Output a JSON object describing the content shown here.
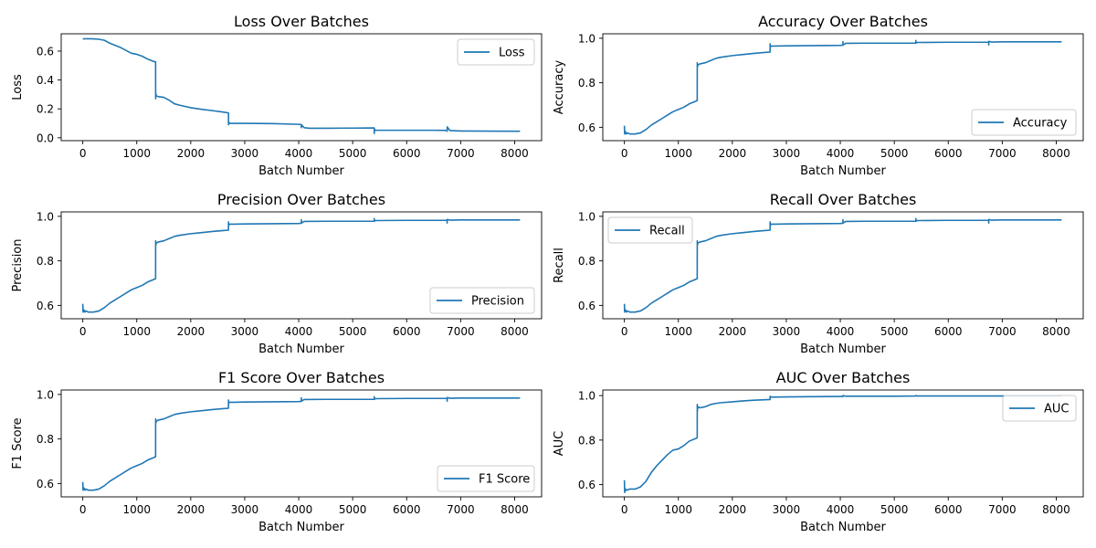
{
  "figure": {
    "background": "#ffffff",
    "line_color": "#1f77b4"
  },
  "chart_data": [
    {
      "type": "line",
      "title": "Loss Over Batches",
      "xlabel": "Batch Number",
      "ylabel": "Loss",
      "xlim": [
        -400,
        8500
      ],
      "ylim": [
        -0.02,
        0.72
      ],
      "xticks": [
        0,
        1000,
        2000,
        3000,
        4000,
        5000,
        6000,
        7000,
        8000
      ],
      "xtick_labels": [
        "0",
        "1000",
        "2000",
        "3000",
        "4000",
        "5000",
        "6000",
        "7000",
        "8000"
      ],
      "yticks": [
        0.0,
        0.2,
        0.4,
        0.6
      ],
      "ytick_labels": [
        "0.0",
        "0.2",
        "0.4",
        "0.6"
      ],
      "legend": {
        "position": "top-right",
        "entries": [
          "Loss"
        ]
      },
      "grid": false,
      "series": [
        {
          "name": "Loss",
          "x": [
            0,
            100,
            200,
            300,
            400,
            500,
            600,
            700,
            800,
            900,
            1000,
            1100,
            1200,
            1300,
            1349,
            1350,
            1352,
            1360,
            1400,
            1500,
            1600,
            1700,
            1800,
            2000,
            2200,
            2400,
            2600,
            2699,
            2700,
            2702,
            2720,
            2800,
            3000,
            3500,
            4000,
            4049,
            4050,
            4052,
            4100,
            4200,
            4500,
            5000,
            5399,
            5400,
            5402,
            5420,
            5500,
            6000,
            6500,
            6749,
            6750,
            6752,
            6800,
            7000,
            7500,
            8000,
            8100
          ],
          "y": [
            0.685,
            0.686,
            0.685,
            0.682,
            0.675,
            0.655,
            0.64,
            0.625,
            0.605,
            0.585,
            0.578,
            0.565,
            0.545,
            0.53,
            0.525,
            0.27,
            0.31,
            0.29,
            0.285,
            0.28,
            0.26,
            0.235,
            0.225,
            0.208,
            0.197,
            0.188,
            0.178,
            0.172,
            0.09,
            0.11,
            0.1,
            0.1,
            0.1,
            0.098,
            0.093,
            0.091,
            0.07,
            0.09,
            0.07,
            0.066,
            0.066,
            0.067,
            0.068,
            0.03,
            0.06,
            0.052,
            0.052,
            0.052,
            0.052,
            0.051,
            0.045,
            0.075,
            0.05,
            0.047,
            0.046,
            0.045,
            0.045
          ]
        }
      ]
    },
    {
      "type": "line",
      "title": "Accuracy Over Batches",
      "xlabel": "Batch Number",
      "ylabel": "Accuracy",
      "xlim": [
        -400,
        8500
      ],
      "ylim": [
        0.54,
        1.02
      ],
      "xticks": [
        0,
        1000,
        2000,
        3000,
        4000,
        5000,
        6000,
        7000,
        8000
      ],
      "xtick_labels": [
        "0",
        "1000",
        "2000",
        "3000",
        "4000",
        "5000",
        "6000",
        "7000",
        "8000"
      ],
      "yticks": [
        0.6,
        0.8,
        1.0
      ],
      "ytick_labels": [
        "0.6",
        "0.8",
        "1.0"
      ],
      "legend": {
        "position": "bottom-right",
        "entries": [
          "Accuracy"
        ]
      },
      "grid": false,
      "series": [
        {
          "name": "Accuracy",
          "x": [
            0,
            5,
            20,
            40,
            60,
            100,
            200,
            300,
            400,
            500,
            600,
            700,
            800,
            900,
            1000,
            1100,
            1200,
            1300,
            1349,
            1350,
            1352,
            1360,
            1400,
            1500,
            1600,
            1700,
            1800,
            2000,
            2200,
            2400,
            2600,
            2699,
            2700,
            2702,
            2720,
            2800,
            3000,
            3500,
            4000,
            4049,
            4050,
            4052,
            4100,
            4500,
            5000,
            5399,
            5400,
            5402,
            5420,
            6000,
            6500,
            6749,
            6750,
            6752,
            6800,
            7000,
            7500,
            8000,
            8100
          ],
          "y": [
            0.607,
            0.57,
            0.58,
            0.57,
            0.575,
            0.57,
            0.57,
            0.575,
            0.59,
            0.61,
            0.625,
            0.64,
            0.655,
            0.67,
            0.68,
            0.69,
            0.705,
            0.715,
            0.72,
            0.89,
            0.87,
            0.88,
            0.885,
            0.89,
            0.9,
            0.91,
            0.915,
            0.922,
            0.927,
            0.932,
            0.936,
            0.938,
            0.975,
            0.96,
            0.965,
            0.965,
            0.966,
            0.967,
            0.968,
            0.969,
            0.985,
            0.97,
            0.977,
            0.978,
            0.978,
            0.978,
            0.99,
            0.978,
            0.981,
            0.982,
            0.982,
            0.982,
            0.97,
            0.986,
            0.983,
            0.984,
            0.984,
            0.984,
            0.984
          ]
        }
      ]
    },
    {
      "type": "line",
      "title": "Precision Over Batches",
      "xlabel": "Batch Number",
      "ylabel": "Precision",
      "xlim": [
        -400,
        8500
      ],
      "ylim": [
        0.54,
        1.02
      ],
      "xticks": [
        0,
        1000,
        2000,
        3000,
        4000,
        5000,
        6000,
        7000,
        8000
      ],
      "xtick_labels": [
        "0",
        "1000",
        "2000",
        "3000",
        "4000",
        "5000",
        "6000",
        "7000",
        "8000"
      ],
      "yticks": [
        0.6,
        0.8,
        1.0
      ],
      "ytick_labels": [
        "0.6",
        "0.8",
        "1.0"
      ],
      "legend": {
        "position": "bottom-right",
        "entries": [
          "Precision"
        ]
      },
      "grid": false,
      "series": [
        {
          "name": "Precision",
          "x": [
            0,
            5,
            20,
            40,
            60,
            100,
            200,
            300,
            400,
            500,
            600,
            700,
            800,
            900,
            1000,
            1100,
            1200,
            1300,
            1349,
            1350,
            1352,
            1360,
            1400,
            1500,
            1600,
            1700,
            1800,
            2000,
            2200,
            2400,
            2600,
            2699,
            2700,
            2702,
            2720,
            2800,
            3000,
            3500,
            4000,
            4049,
            4050,
            4052,
            4100,
            4500,
            5000,
            5399,
            5400,
            5402,
            5420,
            6000,
            6500,
            6749,
            6750,
            6752,
            6800,
            7000,
            7500,
            8000,
            8100
          ],
          "y": [
            0.607,
            0.57,
            0.58,
            0.57,
            0.575,
            0.57,
            0.57,
            0.575,
            0.59,
            0.61,
            0.625,
            0.64,
            0.655,
            0.67,
            0.68,
            0.69,
            0.705,
            0.715,
            0.72,
            0.89,
            0.87,
            0.88,
            0.885,
            0.89,
            0.9,
            0.91,
            0.915,
            0.922,
            0.927,
            0.932,
            0.936,
            0.938,
            0.975,
            0.96,
            0.965,
            0.965,
            0.966,
            0.967,
            0.968,
            0.969,
            0.985,
            0.97,
            0.977,
            0.978,
            0.978,
            0.978,
            0.99,
            0.978,
            0.981,
            0.982,
            0.982,
            0.982,
            0.97,
            0.986,
            0.983,
            0.984,
            0.984,
            0.984,
            0.984
          ]
        }
      ]
    },
    {
      "type": "line",
      "title": "Recall Over Batches",
      "xlabel": "Batch Number",
      "ylabel": "Recall",
      "xlim": [
        -400,
        8500
      ],
      "ylim": [
        0.54,
        1.02
      ],
      "xticks": [
        0,
        1000,
        2000,
        3000,
        4000,
        5000,
        6000,
        7000,
        8000
      ],
      "xtick_labels": [
        "0",
        "1000",
        "2000",
        "3000",
        "4000",
        "5000",
        "6000",
        "7000",
        "8000"
      ],
      "yticks": [
        0.6,
        0.8,
        1.0
      ],
      "ytick_labels": [
        "0.6",
        "0.8",
        "1.0"
      ],
      "legend": {
        "position": "top-left",
        "entries": [
          "Recall"
        ]
      },
      "grid": false,
      "series": [
        {
          "name": "Recall",
          "x": [
            0,
            5,
            20,
            40,
            60,
            100,
            200,
            300,
            400,
            500,
            600,
            700,
            800,
            900,
            1000,
            1100,
            1200,
            1300,
            1349,
            1350,
            1352,
            1360,
            1400,
            1500,
            1600,
            1700,
            1800,
            2000,
            2200,
            2400,
            2600,
            2699,
            2700,
            2702,
            2720,
            2800,
            3000,
            3500,
            4000,
            4049,
            4050,
            4052,
            4100,
            4500,
            5000,
            5399,
            5400,
            5402,
            5420,
            6000,
            6500,
            6749,
            6750,
            6752,
            6800,
            7000,
            7500,
            8000,
            8100
          ],
          "y": [
            0.607,
            0.57,
            0.58,
            0.57,
            0.575,
            0.57,
            0.57,
            0.575,
            0.59,
            0.61,
            0.625,
            0.64,
            0.655,
            0.67,
            0.68,
            0.69,
            0.705,
            0.715,
            0.72,
            0.89,
            0.87,
            0.88,
            0.885,
            0.89,
            0.9,
            0.91,
            0.915,
            0.922,
            0.927,
            0.932,
            0.936,
            0.938,
            0.975,
            0.96,
            0.965,
            0.965,
            0.966,
            0.967,
            0.968,
            0.969,
            0.985,
            0.97,
            0.977,
            0.978,
            0.978,
            0.978,
            0.99,
            0.978,
            0.981,
            0.982,
            0.982,
            0.982,
            0.97,
            0.986,
            0.983,
            0.984,
            0.984,
            0.984,
            0.984
          ]
        }
      ]
    },
    {
      "type": "line",
      "title": "F1 Score Over Batches",
      "xlabel": "Batch Number",
      "ylabel": "F1 Score",
      "xlim": [
        -400,
        8500
      ],
      "ylim": [
        0.54,
        1.02
      ],
      "xticks": [
        0,
        1000,
        2000,
        3000,
        4000,
        5000,
        6000,
        7000,
        8000
      ],
      "xtick_labels": [
        "0",
        "1000",
        "2000",
        "3000",
        "4000",
        "5000",
        "6000",
        "7000",
        "8000"
      ],
      "yticks": [
        0.6,
        0.8,
        1.0
      ],
      "ytick_labels": [
        "0.6",
        "0.8",
        "1.0"
      ],
      "legend": {
        "position": "bottom-right",
        "entries": [
          "F1 Score"
        ]
      },
      "grid": false,
      "series": [
        {
          "name": "F1 Score",
          "x": [
            0,
            5,
            20,
            40,
            60,
            100,
            200,
            300,
            400,
            500,
            600,
            700,
            800,
            900,
            1000,
            1100,
            1200,
            1300,
            1349,
            1350,
            1352,
            1360,
            1400,
            1500,
            1600,
            1700,
            1800,
            2000,
            2200,
            2400,
            2600,
            2699,
            2700,
            2702,
            2720,
            2800,
            3000,
            3500,
            4000,
            4049,
            4050,
            4052,
            4100,
            4500,
            5000,
            5399,
            5400,
            5402,
            5420,
            6000,
            6500,
            6749,
            6750,
            6752,
            6800,
            7000,
            7500,
            8000,
            8100
          ],
          "y": [
            0.607,
            0.57,
            0.58,
            0.57,
            0.575,
            0.57,
            0.57,
            0.575,
            0.59,
            0.61,
            0.625,
            0.64,
            0.655,
            0.67,
            0.68,
            0.69,
            0.705,
            0.715,
            0.72,
            0.89,
            0.87,
            0.88,
            0.885,
            0.89,
            0.9,
            0.91,
            0.915,
            0.922,
            0.927,
            0.932,
            0.936,
            0.938,
            0.975,
            0.96,
            0.965,
            0.965,
            0.966,
            0.967,
            0.968,
            0.969,
            0.985,
            0.97,
            0.977,
            0.978,
            0.978,
            0.978,
            0.99,
            0.978,
            0.981,
            0.982,
            0.982,
            0.982,
            0.97,
            0.986,
            0.983,
            0.984,
            0.984,
            0.984,
            0.984
          ]
        }
      ]
    },
    {
      "type": "line",
      "title": "AUC Over Batches",
      "xlabel": "Batch Number",
      "ylabel": "AUC",
      "xlim": [
        -400,
        8500
      ],
      "ylim": [
        0.545,
        1.025
      ],
      "xticks": [
        0,
        1000,
        2000,
        3000,
        4000,
        5000,
        6000,
        7000,
        8000
      ],
      "xtick_labels": [
        "0",
        "1000",
        "2000",
        "3000",
        "4000",
        "5000",
        "6000",
        "7000",
        "8000"
      ],
      "yticks": [
        0.6,
        0.8,
        1.0
      ],
      "ytick_labels": [
        "0.6",
        "0.8",
        "1.0"
      ],
      "legend": {
        "position": "top-right",
        "entries": [
          "AUC"
        ]
      },
      "grid": false,
      "series": [
        {
          "name": "AUC",
          "x": [
            0,
            5,
            20,
            40,
            100,
            200,
            300,
            400,
            500,
            600,
            700,
            800,
            900,
            1000,
            1100,
            1200,
            1300,
            1349,
            1350,
            1352,
            1360,
            1400,
            1500,
            1600,
            1700,
            1800,
            2000,
            2200,
            2400,
            2600,
            2699,
            2700,
            2720,
            3000,
            3500,
            4000,
            4049,
            4050,
            4100,
            4500,
            5000,
            5399,
            5400,
            5420,
            6000,
            7000,
            8000,
            8100
          ],
          "y": [
            0.62,
            0.565,
            0.58,
            0.575,
            0.58,
            0.58,
            0.59,
            0.615,
            0.655,
            0.685,
            0.71,
            0.735,
            0.755,
            0.76,
            0.775,
            0.795,
            0.805,
            0.81,
            0.96,
            0.93,
            0.95,
            0.945,
            0.95,
            0.96,
            0.965,
            0.968,
            0.972,
            0.976,
            0.979,
            0.981,
            0.982,
            0.997,
            0.993,
            0.994,
            0.995,
            0.996,
            0.996,
            1.0,
            0.997,
            0.997,
            0.997,
            0.998,
            1.0,
            0.998,
            0.998,
            0.998,
            0.998,
            0.998
          ]
        }
      ]
    }
  ]
}
